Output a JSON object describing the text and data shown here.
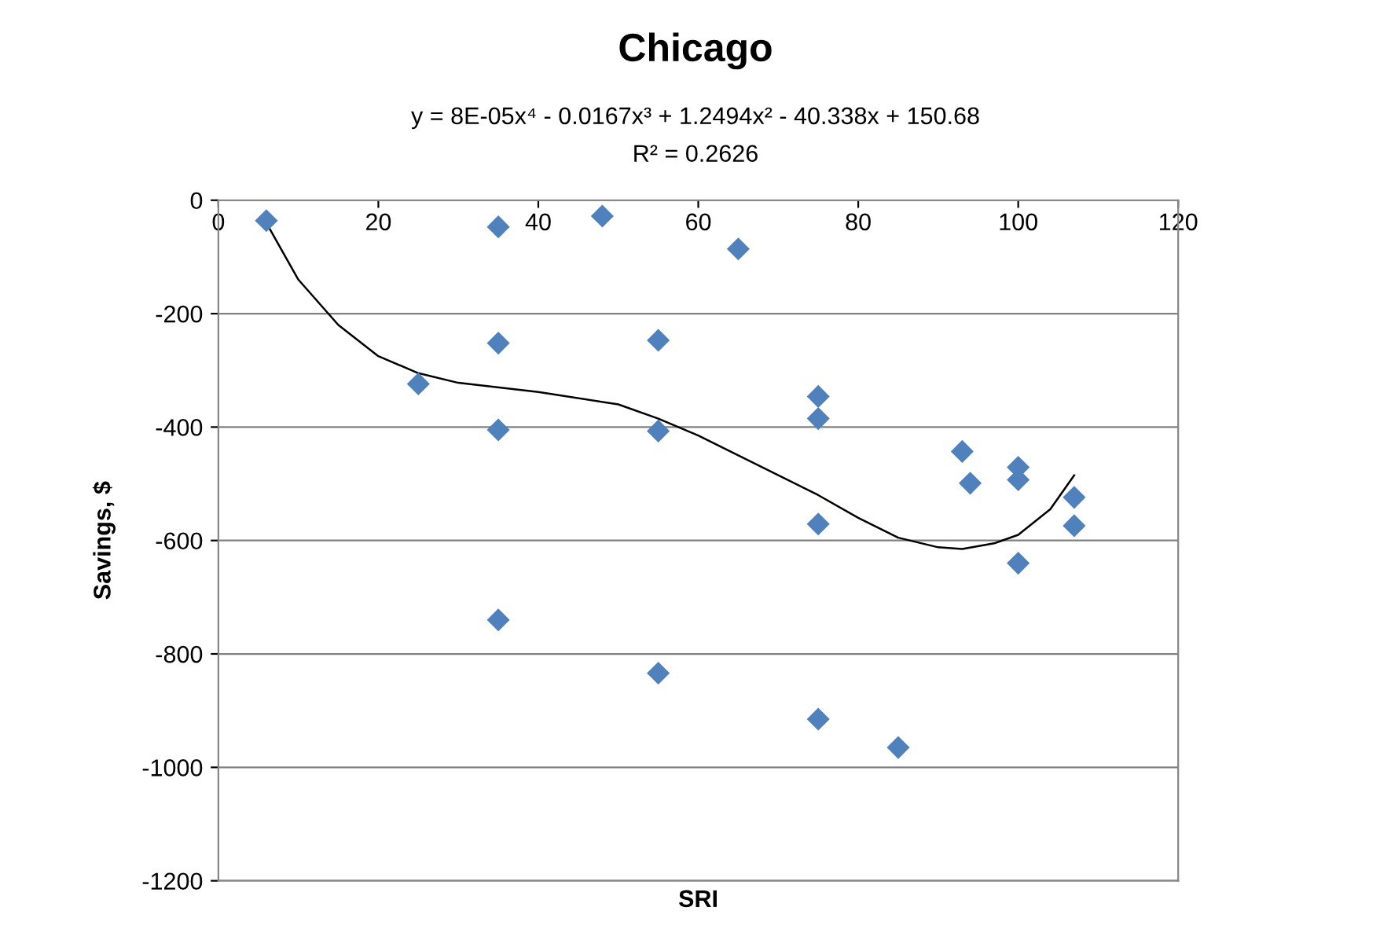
{
  "chart_data": {
    "type": "scatter",
    "title": "Chicago",
    "subtitle": "y = 8E-05x⁴ - 0.0167x³ + 1.2494x² - 40.338x + 150.68",
    "annotations": [
      "R² = 0.2626"
    ],
    "xlabel": "SRI",
    "ylabel": "Savings, $",
    "xlim": [
      0,
      120
    ],
    "xticks": [
      0,
      20,
      40,
      60,
      80,
      100,
      120
    ],
    "ylim": [
      -1200,
      0
    ],
    "yticks": [
      -1200,
      -1000,
      -800,
      -600,
      -400,
      -200,
      0
    ],
    "grid": "y",
    "marker": "diamond",
    "series": [
      {
        "color": "#4f81bd",
        "x": [
          6,
          25,
          35,
          35,
          35,
          35,
          48,
          55,
          55,
          55,
          65,
          75,
          75,
          75,
          75,
          85,
          93,
          94,
          100,
          100,
          100,
          107,
          107
        ],
        "values": [
          -36,
          -324,
          -47,
          -252,
          -405,
          -740,
          -28,
          -247,
          -407,
          -834,
          -86,
          -346,
          -385,
          -571,
          -915,
          -965,
          -443,
          -499,
          -471,
          -493,
          -640,
          -524,
          -574
        ]
      },
      {
        "type": "line",
        "color": "#000000",
        "line_style": "solid",
        "marker": "none",
        "x": [
          6,
          10,
          15,
          20,
          25,
          30,
          40,
          50,
          55,
          60,
          65,
          70,
          75,
          80,
          85,
          90,
          93,
          97,
          100,
          104,
          107
        ],
        "values": [
          -40,
          -140,
          -220,
          -275,
          -305,
          -322,
          -338,
          -360,
          -385,
          -415,
          -450,
          -485,
          -520,
          -560,
          -595,
          -612,
          -615,
          -605,
          -590,
          -545,
          -485
        ]
      }
    ]
  }
}
